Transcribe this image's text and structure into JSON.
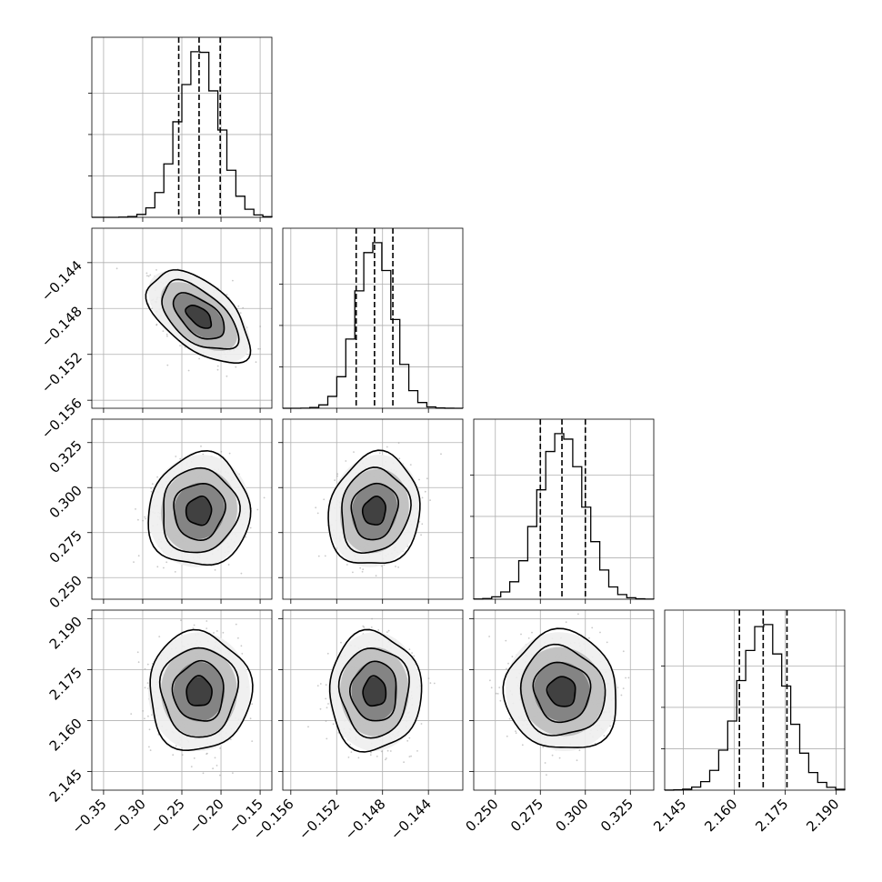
{
  "chart_data": {
    "type": "corner",
    "colors": {
      "ink": "#000000",
      "grid": "#b0b0b0",
      "points": "#9a9a9a"
    },
    "grid": true,
    "parameters": [
      {
        "range": [
          -0.365,
          -0.135
        ],
        "ticks": [
          -0.35,
          -0.3,
          -0.25,
          -0.2,
          -0.15
        ],
        "tick_labels": [
          "−0.35",
          "−0.30",
          "−0.25",
          "−0.20",
          "−0.15"
        ],
        "mean": -0.228,
        "sigma": 0.026,
        "quantiles": [
          -0.254,
          -0.228,
          -0.201
        ]
      },
      {
        "range": [
          -0.1567,
          -0.141
        ],
        "ticks": [
          -0.156,
          -0.152,
          -0.148,
          -0.144
        ],
        "tick_labels": [
          "−0.156",
          "−0.152",
          "−0.148",
          "−0.144"
        ],
        "mean": -0.1487,
        "sigma": 0.0016,
        "quantiles": [
          -0.1503,
          -0.1487,
          -0.1471
        ]
      },
      {
        "range": [
          0.238,
          0.338
        ],
        "ticks": [
          0.25,
          0.275,
          0.3,
          0.325
        ],
        "tick_labels": [
          "0.250",
          "0.275",
          "0.300",
          "0.325"
        ],
        "mean": 0.287,
        "sigma": 0.0125,
        "quantiles": [
          0.275,
          0.287,
          0.3
        ]
      },
      {
        "range": [
          2.1395,
          2.1925
        ],
        "ticks": [
          2.145,
          2.16,
          2.175,
          2.19
        ],
        "tick_labels": [
          "2.145",
          "2.160",
          "2.175",
          "2.190"
        ],
        "mean": 2.1685,
        "sigma": 0.007,
        "quantiles": [
          2.1615,
          2.1685,
          2.1755
        ]
      }
    ],
    "correlations": [
      {
        "pair": [
          1,
          0
        ],
        "rho": -0.55
      },
      {
        "pair": [
          2,
          0
        ],
        "rho": 0.05
      },
      {
        "pair": [
          2,
          1
        ],
        "rho": 0.1
      },
      {
        "pair": [
          3,
          0
        ],
        "rho": 0.0
      },
      {
        "pair": [
          3,
          1
        ],
        "rho": 0.0
      },
      {
        "pair": [
          3,
          2
        ],
        "rho": -0.05
      }
    ],
    "contour_levels_sigma": [
      0.5,
      1.0,
      1.5,
      2.0
    ],
    "histogram_bins": 20
  }
}
